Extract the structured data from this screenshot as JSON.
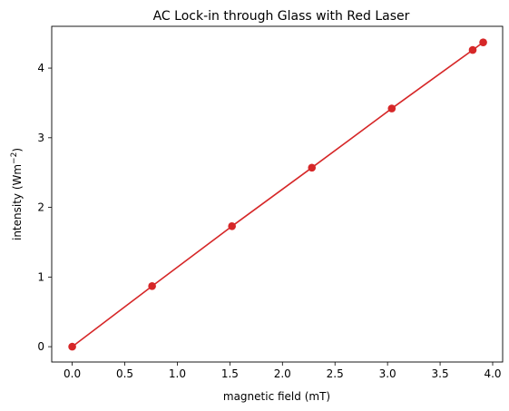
{
  "chart_data": {
    "type": "line",
    "title": "AC Lock-in through Glass with Red Laser",
    "xlabel": "magnetic field (mT)",
    "ylabel_base": "intensity (Wm",
    "ylabel_sup": "−2",
    "ylabel_end": ")",
    "xlim": [
      -0.195,
      4.095
    ],
    "ylim": [
      -0.22,
      4.6
    ],
    "xticks": [
      0.0,
      0.5,
      1.0,
      1.5,
      2.0,
      2.5,
      3.0,
      3.5,
      4.0
    ],
    "xtick_labels": [
      "0.0",
      "0.5",
      "1.0",
      "1.5",
      "2.0",
      "2.5",
      "3.0",
      "3.5",
      "4.0"
    ],
    "yticks": [
      0,
      1,
      2,
      3,
      4
    ],
    "ytick_labels": [
      "0",
      "1",
      "2",
      "3",
      "4"
    ],
    "grid": false,
    "color": "#d62728",
    "series": [
      {
        "x": [
          0.0,
          0.76,
          1.52,
          2.28,
          3.04,
          3.81,
          3.91
        ],
        "y": [
          0.0,
          0.87,
          1.73,
          2.57,
          3.42,
          4.26,
          4.37
        ]
      }
    ]
  }
}
